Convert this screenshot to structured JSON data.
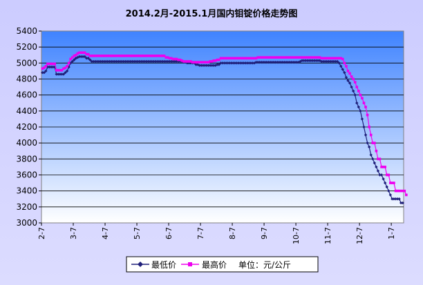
{
  "chart_data": {
    "type": "line",
    "title": "2014.2月-2015.1月国内钼锭价格走势图",
    "xlabel": "",
    "ylabel": "",
    "ylim": [
      3000,
      5400
    ],
    "y_ticks": [
      3000,
      3200,
      3400,
      3600,
      3800,
      4000,
      4200,
      4400,
      4600,
      4800,
      5000,
      5200,
      5400
    ],
    "x_tick_labels": [
      "2-7",
      "3-7",
      "4-7",
      "5-7",
      "6-7",
      "7-7",
      "8-7",
      "9-7",
      "10-7",
      "11-7",
      "12-7",
      "1-7"
    ],
    "grid": true,
    "legend_position": "bottom",
    "note": "单位：元/公斤",
    "series": [
      {
        "name": "最低价",
        "color": "#1f1f7a",
        "marker": "diamond",
        "values": [
          4880,
          4880,
          4900,
          4950,
          4950,
          4950,
          4950,
          4950,
          4860,
          4860,
          4860,
          4860,
          4860,
          4880,
          4900,
          4950,
          5000,
          5020,
          5040,
          5060,
          5070,
          5080,
          5080,
          5080,
          5080,
          5060,
          5060,
          5040,
          5020,
          5020,
          5020,
          5020,
          5020,
          5020,
          5020,
          5020,
          5020,
          5020,
          5020,
          5020,
          5020,
          5020,
          5020,
          5020,
          5020,
          5020,
          5020,
          5020,
          5020,
          5020,
          5020,
          5020,
          5020,
          5020,
          5020,
          5020,
          5020,
          5020,
          5020,
          5020,
          5020,
          5020,
          5020,
          5020,
          5020,
          5020,
          5020,
          5020,
          5020,
          5020,
          5020,
          5020,
          5020,
          5020,
          5020,
          5020,
          5020,
          5020,
          5020,
          5020,
          5010,
          5010,
          5000,
          5000,
          5000,
          5000,
          5000,
          4980,
          4980,
          4970,
          4970,
          4970,
          4970,
          4970,
          4970,
          4970,
          4970,
          4970,
          4970,
          4980,
          4980,
          5000,
          5000,
          5000,
          5000,
          5000,
          5000,
          5000,
          5000,
          5000,
          5000,
          5000,
          5000,
          5000,
          5000,
          5000,
          5000,
          5000,
          5000,
          5000,
          5000,
          5010,
          5010,
          5010,
          5010,
          5010,
          5010,
          5010,
          5010,
          5010,
          5010,
          5010,
          5010,
          5010,
          5010,
          5010,
          5010,
          5010,
          5010,
          5010,
          5010,
          5010,
          5010,
          5010,
          5010,
          5010,
          5020,
          5030,
          5030,
          5030,
          5030,
          5030,
          5030,
          5030,
          5030,
          5030,
          5030,
          5030,
          5020,
          5020,
          5020,
          5020,
          5020,
          5020,
          5020,
          5020,
          5020,
          5020,
          5000,
          4960,
          4920,
          4880,
          4820,
          4780,
          4750,
          4700,
          4650,
          4600,
          4500,
          4450,
          4400,
          4300,
          4200,
          4100,
          4000,
          3950,
          3850,
          3800,
          3750,
          3700,
          3650,
          3600,
          3600,
          3550,
          3500,
          3450,
          3400,
          3350,
          3300,
          3300,
          3300,
          3300,
          3300,
          3250,
          3250
        ]
      },
      {
        "name": "最高价",
        "color": "#ee00ee",
        "marker": "square",
        "values": [
          4930,
          4940,
          4960,
          4990,
          4990,
          4990,
          4990,
          4990,
          4910,
          4910,
          4910,
          4910,
          4930,
          4940,
          4960,
          5000,
          5050,
          5070,
          5090,
          5100,
          5120,
          5130,
          5130,
          5130,
          5130,
          5110,
          5110,
          5090,
          5090,
          5090,
          5090,
          5090,
          5090,
          5090,
          5090,
          5090,
          5090,
          5090,
          5090,
          5090,
          5090,
          5090,
          5090,
          5090,
          5090,
          5090,
          5090,
          5090,
          5090,
          5090,
          5090,
          5090,
          5090,
          5090,
          5090,
          5090,
          5090,
          5090,
          5090,
          5090,
          5090,
          5090,
          5090,
          5090,
          5090,
          5090,
          5090,
          5090,
          5090,
          5090,
          5070,
          5070,
          5060,
          5060,
          5050,
          5050,
          5050,
          5040,
          5040,
          5030,
          5020,
          5020,
          5020,
          5020,
          5020,
          5010,
          5010,
          5010,
          5010,
          5010,
          5010,
          5010,
          5010,
          5010,
          5010,
          5020,
          5020,
          5030,
          5030,
          5040,
          5040,
          5060,
          5060,
          5060,
          5060,
          5060,
          5060,
          5060,
          5060,
          5060,
          5060,
          5060,
          5060,
          5060,
          5060,
          5060,
          5060,
          5060,
          5060,
          5060,
          5060,
          5060,
          5070,
          5070,
          5070,
          5070,
          5070,
          5070,
          5070,
          5070,
          5070,
          5070,
          5070,
          5070,
          5070,
          5070,
          5070,
          5070,
          5070,
          5070,
          5070,
          5070,
          5070,
          5070,
          5070,
          5070,
          5070,
          5070,
          5070,
          5070,
          5070,
          5070,
          5070,
          5070,
          5070,
          5070,
          5070,
          5070,
          5060,
          5060,
          5060,
          5060,
          5060,
          5060,
          5060,
          5060,
          5060,
          5060,
          5060,
          5060,
          5050,
          5000,
          4960,
          4900,
          4870,
          4830,
          4800,
          4760,
          4700,
          4650,
          4600,
          4560,
          4500,
          4450,
          4350,
          4200,
          4100,
          4000,
          4000,
          3900,
          3800,
          3800,
          3700,
          3700,
          3700,
          3600,
          3600,
          3500,
          3500,
          3500,
          3400,
          3400,
          3400,
          3400,
          3400,
          3400,
          3350
        ]
      }
    ]
  }
}
